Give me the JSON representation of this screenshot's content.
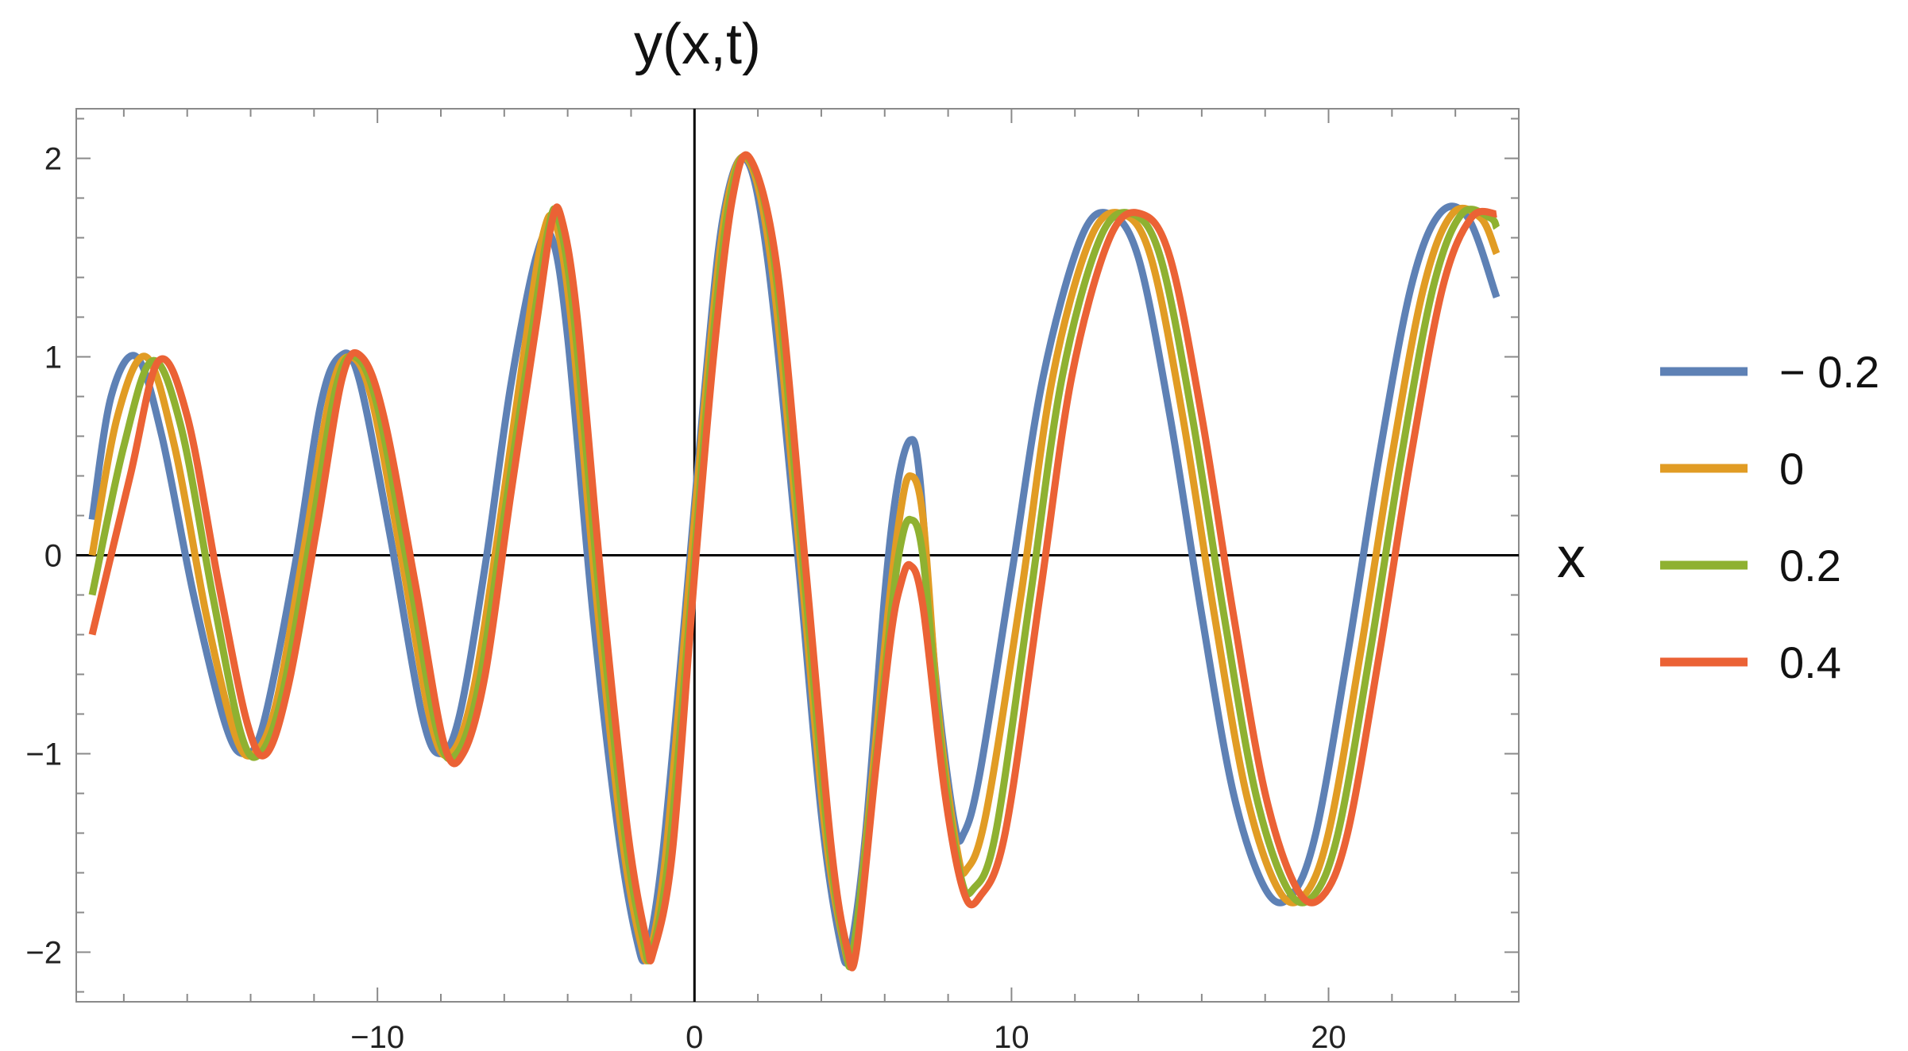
{
  "chart_data": {
    "type": "line",
    "title": "y(x,t)",
    "xlabel": "x",
    "ylabel": "",
    "xlim": [
      -19.5,
      26
    ],
    "ylim": [
      -2.25,
      2.25
    ],
    "x_ticks": [
      -10,
      0,
      10,
      20
    ],
    "x_tick_labels": [
      "−10",
      "0",
      "10",
      "20"
    ],
    "y_ticks": [
      -2,
      -1,
      0,
      1,
      2
    ],
    "y_tick_labels": [
      "−2",
      "−1",
      "0",
      "1",
      "2"
    ],
    "grid": false,
    "legend_position": "right",
    "x_range_plotted": [
      -19,
      25.3
    ],
    "series": [
      {
        "name": "− 0.2",
        "color": "#5E81B5",
        "points": [
          [
            -19,
            0.18
          ],
          [
            -18.4,
            0.8
          ],
          [
            -17.6,
            1.0
          ],
          [
            -16.8,
            0.6
          ],
          [
            -15.8,
            -0.2
          ],
          [
            -14.8,
            -0.85
          ],
          [
            -14.2,
            -1.0
          ],
          [
            -13.6,
            -0.85
          ],
          [
            -12.6,
            -0.05
          ],
          [
            -11.8,
            0.75
          ],
          [
            -11.2,
            1.0
          ],
          [
            -10.6,
            0.9
          ],
          [
            -9.6,
            0.1
          ],
          [
            -8.6,
            -0.8
          ],
          [
            -8.0,
            -1.0
          ],
          [
            -7.4,
            -0.8
          ],
          [
            -6.6,
            -0.05
          ],
          [
            -5.8,
            0.85
          ],
          [
            -5.0,
            1.5
          ],
          [
            -4.5,
            1.6
          ],
          [
            -4.0,
            1.1
          ],
          [
            -3.2,
            -0.3
          ],
          [
            -2.4,
            -1.4
          ],
          [
            -1.8,
            -1.95
          ],
          [
            -1.5,
            -2.0
          ],
          [
            -1.0,
            -1.5
          ],
          [
            -0.3,
            -0.3
          ],
          [
            0.3,
            0.8
          ],
          [
            0.9,
            1.7
          ],
          [
            1.6,
            2.0
          ],
          [
            2.3,
            1.5
          ],
          [
            3.2,
            0.1
          ],
          [
            4.0,
            -1.3
          ],
          [
            4.6,
            -1.95
          ],
          [
            4.9,
            -2.0
          ],
          [
            5.4,
            -1.4
          ],
          [
            6.0,
            -0.2
          ],
          [
            6.4,
            0.35
          ],
          [
            6.8,
            0.58
          ],
          [
            7.1,
            0.4
          ],
          [
            7.6,
            -0.6
          ],
          [
            8.2,
            -1.35
          ],
          [
            8.5,
            -1.4
          ],
          [
            9.0,
            -1.1
          ],
          [
            10.0,
            -0.1
          ],
          [
            11.0,
            0.9
          ],
          [
            12.2,
            1.6
          ],
          [
            13.1,
            1.72
          ],
          [
            14.0,
            1.5
          ],
          [
            15.0,
            0.7
          ],
          [
            16.0,
            -0.3
          ],
          [
            17.0,
            -1.2
          ],
          [
            18.0,
            -1.68
          ],
          [
            18.8,
            -1.72
          ],
          [
            19.6,
            -1.4
          ],
          [
            20.6,
            -0.5
          ],
          [
            21.6,
            0.5
          ],
          [
            22.6,
            1.35
          ],
          [
            23.5,
            1.72
          ],
          [
            24.4,
            1.7
          ],
          [
            25.3,
            1.3
          ]
        ]
      },
      {
        "name": "0",
        "color": "#E19C24",
        "points": [
          [
            -19,
            0.0
          ],
          [
            -18.2,
            0.7
          ],
          [
            -17.3,
            1.0
          ],
          [
            -16.4,
            0.55
          ],
          [
            -15.4,
            -0.3
          ],
          [
            -14.5,
            -0.9
          ],
          [
            -13.9,
            -1.0
          ],
          [
            -13.2,
            -0.75
          ],
          [
            -12.3,
            0.05
          ],
          [
            -11.5,
            0.8
          ],
          [
            -10.9,
            1.0
          ],
          [
            -10.2,
            0.8
          ],
          [
            -9.2,
            -0.05
          ],
          [
            -8.3,
            -0.85
          ],
          [
            -7.7,
            -1.0
          ],
          [
            -7.0,
            -0.7
          ],
          [
            -6.2,
            0.1
          ],
          [
            -5.4,
            1.0
          ],
          [
            -4.8,
            1.6
          ],
          [
            -4.4,
            1.68
          ],
          [
            -3.9,
            1.2
          ],
          [
            -3.1,
            -0.2
          ],
          [
            -2.3,
            -1.4
          ],
          [
            -1.7,
            -1.95
          ],
          [
            -1.4,
            -2.0
          ],
          [
            -0.9,
            -1.5
          ],
          [
            -0.2,
            -0.2
          ],
          [
            0.4,
            0.9
          ],
          [
            1.0,
            1.75
          ],
          [
            1.65,
            2.0
          ],
          [
            2.4,
            1.5
          ],
          [
            3.3,
            0.05
          ],
          [
            4.1,
            -1.35
          ],
          [
            4.7,
            -1.95
          ],
          [
            5.0,
            -2.0
          ],
          [
            5.5,
            -1.3
          ],
          [
            6.1,
            -0.3
          ],
          [
            6.5,
            0.22
          ],
          [
            6.8,
            0.4
          ],
          [
            7.2,
            0.2
          ],
          [
            7.7,
            -0.8
          ],
          [
            8.3,
            -1.5
          ],
          [
            8.6,
            -1.58
          ],
          [
            9.2,
            -1.3
          ],
          [
            10.3,
            -0.2
          ],
          [
            11.3,
            0.9
          ],
          [
            12.5,
            1.6
          ],
          [
            13.5,
            1.72
          ],
          [
            14.4,
            1.5
          ],
          [
            15.4,
            0.7
          ],
          [
            16.4,
            -0.3
          ],
          [
            17.4,
            -1.2
          ],
          [
            18.4,
            -1.68
          ],
          [
            19.2,
            -1.72
          ],
          [
            20.0,
            -1.4
          ],
          [
            21.0,
            -0.5
          ],
          [
            22.0,
            0.5
          ],
          [
            23.0,
            1.35
          ],
          [
            23.9,
            1.72
          ],
          [
            24.8,
            1.7
          ],
          [
            25.3,
            1.52
          ]
        ]
      },
      {
        "name": "0.2",
        "color": "#8FB131",
        "points": [
          [
            -19,
            -0.2
          ],
          [
            -18.0,
            0.55
          ],
          [
            -17.1,
            0.98
          ],
          [
            -16.2,
            0.65
          ],
          [
            -15.2,
            -0.2
          ],
          [
            -14.3,
            -0.9
          ],
          [
            -13.7,
            -1.0
          ],
          [
            -13.0,
            -0.7
          ],
          [
            -12.1,
            0.1
          ],
          [
            -11.3,
            0.85
          ],
          [
            -10.7,
            1.0
          ],
          [
            -10.0,
            0.75
          ],
          [
            -9.0,
            -0.1
          ],
          [
            -8.1,
            -0.9
          ],
          [
            -7.5,
            -1.0
          ],
          [
            -6.8,
            -0.65
          ],
          [
            -6.0,
            0.2
          ],
          [
            -5.2,
            1.05
          ],
          [
            -4.6,
            1.65
          ],
          [
            -4.3,
            1.7
          ],
          [
            -3.8,
            1.2
          ],
          [
            -3.0,
            -0.2
          ],
          [
            -2.2,
            -1.4
          ],
          [
            -1.6,
            -1.95
          ],
          [
            -1.35,
            -2.0
          ],
          [
            -0.8,
            -1.5
          ],
          [
            -0.1,
            -0.2
          ],
          [
            0.5,
            0.95
          ],
          [
            1.1,
            1.78
          ],
          [
            1.7,
            2.0
          ],
          [
            2.5,
            1.5
          ],
          [
            3.4,
            0.0
          ],
          [
            4.2,
            -1.4
          ],
          [
            4.75,
            -1.97
          ],
          [
            5.0,
            -2.0
          ],
          [
            5.6,
            -1.2
          ],
          [
            6.2,
            -0.3
          ],
          [
            6.5,
            0.05
          ],
          [
            6.8,
            0.18
          ],
          [
            7.2,
            0.0
          ],
          [
            7.8,
            -1.0
          ],
          [
            8.4,
            -1.62
          ],
          [
            8.8,
            -1.68
          ],
          [
            9.5,
            -1.4
          ],
          [
            10.6,
            -0.2
          ],
          [
            11.6,
            0.9
          ],
          [
            12.8,
            1.6
          ],
          [
            13.8,
            1.72
          ],
          [
            14.7,
            1.5
          ],
          [
            15.7,
            0.7
          ],
          [
            16.7,
            -0.3
          ],
          [
            17.7,
            -1.2
          ],
          [
            18.7,
            -1.68
          ],
          [
            19.5,
            -1.72
          ],
          [
            20.3,
            -1.4
          ],
          [
            21.3,
            -0.5
          ],
          [
            22.3,
            0.5
          ],
          [
            23.3,
            1.35
          ],
          [
            24.2,
            1.72
          ],
          [
            25.1,
            1.7
          ],
          [
            25.3,
            1.65
          ]
        ]
      },
      {
        "name": "0.4",
        "color": "#EB6235",
        "points": [
          [
            -19,
            -0.4
          ],
          [
            -17.8,
            0.4
          ],
          [
            -16.9,
            0.98
          ],
          [
            -16.0,
            0.7
          ],
          [
            -15.0,
            -0.15
          ],
          [
            -14.1,
            -0.85
          ],
          [
            -13.5,
            -1.0
          ],
          [
            -12.8,
            -0.65
          ],
          [
            -11.9,
            0.15
          ],
          [
            -11.1,
            0.9
          ],
          [
            -10.5,
            1.0
          ],
          [
            -9.8,
            0.7
          ],
          [
            -8.8,
            -0.15
          ],
          [
            -7.9,
            -0.95
          ],
          [
            -7.3,
            -1.0
          ],
          [
            -6.6,
            -0.6
          ],
          [
            -5.8,
            0.3
          ],
          [
            -5.0,
            1.15
          ],
          [
            -4.5,
            1.68
          ],
          [
            -4.2,
            1.7
          ],
          [
            -3.7,
            1.2
          ],
          [
            -2.9,
            -0.2
          ],
          [
            -2.1,
            -1.4
          ],
          [
            -1.5,
            -1.95
          ],
          [
            -1.3,
            -2.0
          ],
          [
            -0.7,
            -1.5
          ],
          [
            0.0,
            -0.1
          ],
          [
            0.6,
            1.0
          ],
          [
            1.2,
            1.8
          ],
          [
            1.75,
            2.0
          ],
          [
            2.6,
            1.45
          ],
          [
            3.5,
            -0.05
          ],
          [
            4.3,
            -1.45
          ],
          [
            4.8,
            -1.97
          ],
          [
            5.1,
            -2.0
          ],
          [
            5.7,
            -1.1
          ],
          [
            6.2,
            -0.4
          ],
          [
            6.5,
            -0.15
          ],
          [
            6.8,
            -0.05
          ],
          [
            7.2,
            -0.25
          ],
          [
            7.9,
            -1.2
          ],
          [
            8.5,
            -1.7
          ],
          [
            9.0,
            -1.72
          ],
          [
            9.8,
            -1.4
          ],
          [
            10.9,
            -0.2
          ],
          [
            11.9,
            0.9
          ],
          [
            13.1,
            1.6
          ],
          [
            14.1,
            1.72
          ],
          [
            15.0,
            1.5
          ],
          [
            16.0,
            0.7
          ],
          [
            17.0,
            -0.3
          ],
          [
            18.0,
            -1.2
          ],
          [
            19.0,
            -1.68
          ],
          [
            19.8,
            -1.72
          ],
          [
            20.6,
            -1.4
          ],
          [
            21.6,
            -0.5
          ],
          [
            22.6,
            0.5
          ],
          [
            23.6,
            1.35
          ],
          [
            24.5,
            1.7
          ],
          [
            25.3,
            1.72
          ]
        ]
      }
    ]
  }
}
